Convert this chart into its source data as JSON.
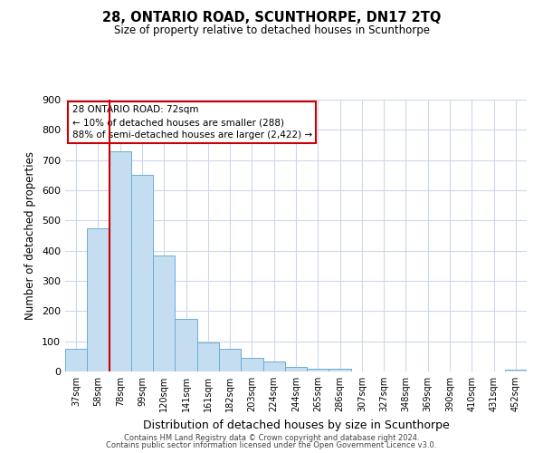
{
  "title": "28, ONTARIO ROAD, SCUNTHORPE, DN17 2TQ",
  "subtitle": "Size of property relative to detached houses in Scunthorpe",
  "xlabel": "Distribution of detached houses by size in Scunthorpe",
  "ylabel": "Number of detached properties",
  "bar_labels": [
    "37sqm",
    "58sqm",
    "78sqm",
    "99sqm",
    "120sqm",
    "141sqm",
    "161sqm",
    "182sqm",
    "203sqm",
    "224sqm",
    "244sqm",
    "265sqm",
    "286sqm",
    "307sqm",
    "327sqm",
    "348sqm",
    "369sqm",
    "390sqm",
    "410sqm",
    "431sqm",
    "452sqm"
  ],
  "bar_values": [
    75,
    475,
    730,
    650,
    385,
    175,
    97,
    74,
    46,
    32,
    15,
    10,
    10,
    0,
    0,
    0,
    0,
    0,
    0,
    0,
    5
  ],
  "bar_color": "#c5ddf0",
  "bar_edge_color": "#6aaed6",
  "vline_x": 2.0,
  "vline_color": "#cc0000",
  "annotation_line1": "28 ONTARIO ROAD: 72sqm",
  "annotation_line2": "← 10% of detached houses are smaller (288)",
  "annotation_line3": "88% of semi-detached houses are larger (2,422) →",
  "ylim": [
    0,
    900
  ],
  "yticks": [
    0,
    100,
    200,
    300,
    400,
    500,
    600,
    700,
    800,
    900
  ],
  "footer1": "Contains HM Land Registry data © Crown copyright and database right 2024.",
  "footer2": "Contains public sector information licensed under the Open Government Licence v3.0.",
  "background_color": "#ffffff",
  "grid_color": "#cdd8ea"
}
